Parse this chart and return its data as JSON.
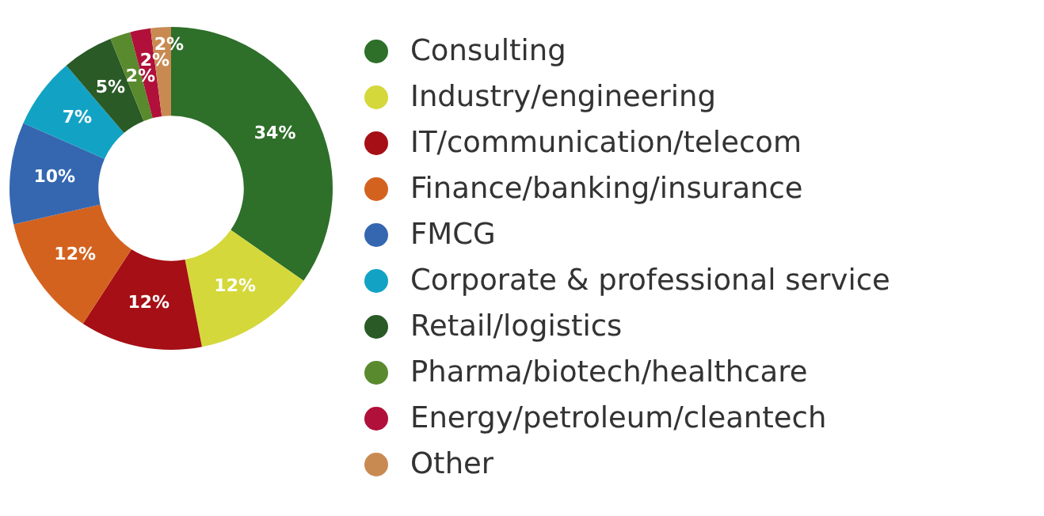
{
  "chart_data": {
    "type": "donut",
    "categories": [
      "Consulting",
      "Industry/engineering",
      "IT/communication/telecom",
      "Finance/banking/insurance",
      "FMCG",
      "Corporate & professional service",
      "Retail/logistics",
      "Pharma/biotech/healthcare",
      "Energy/petroleum/cleantech",
      "Other"
    ],
    "values": [
      34,
      12,
      12,
      12,
      10,
      7,
      5,
      2,
      2,
      2
    ],
    "value_labels": [
      "34%",
      "12%",
      "12%",
      "12%",
      "10%",
      "7%",
      "5%",
      "2%",
      "2%",
      "2%"
    ],
    "colors": [
      "#2e6f2a",
      "#d4d83a",
      "#a50f15",
      "#d4621f",
      "#3567b0",
      "#12a3c4",
      "#2a5a26",
      "#5a8a2e",
      "#b0103a",
      "#c98a52"
    ],
    "legend": "right"
  }
}
